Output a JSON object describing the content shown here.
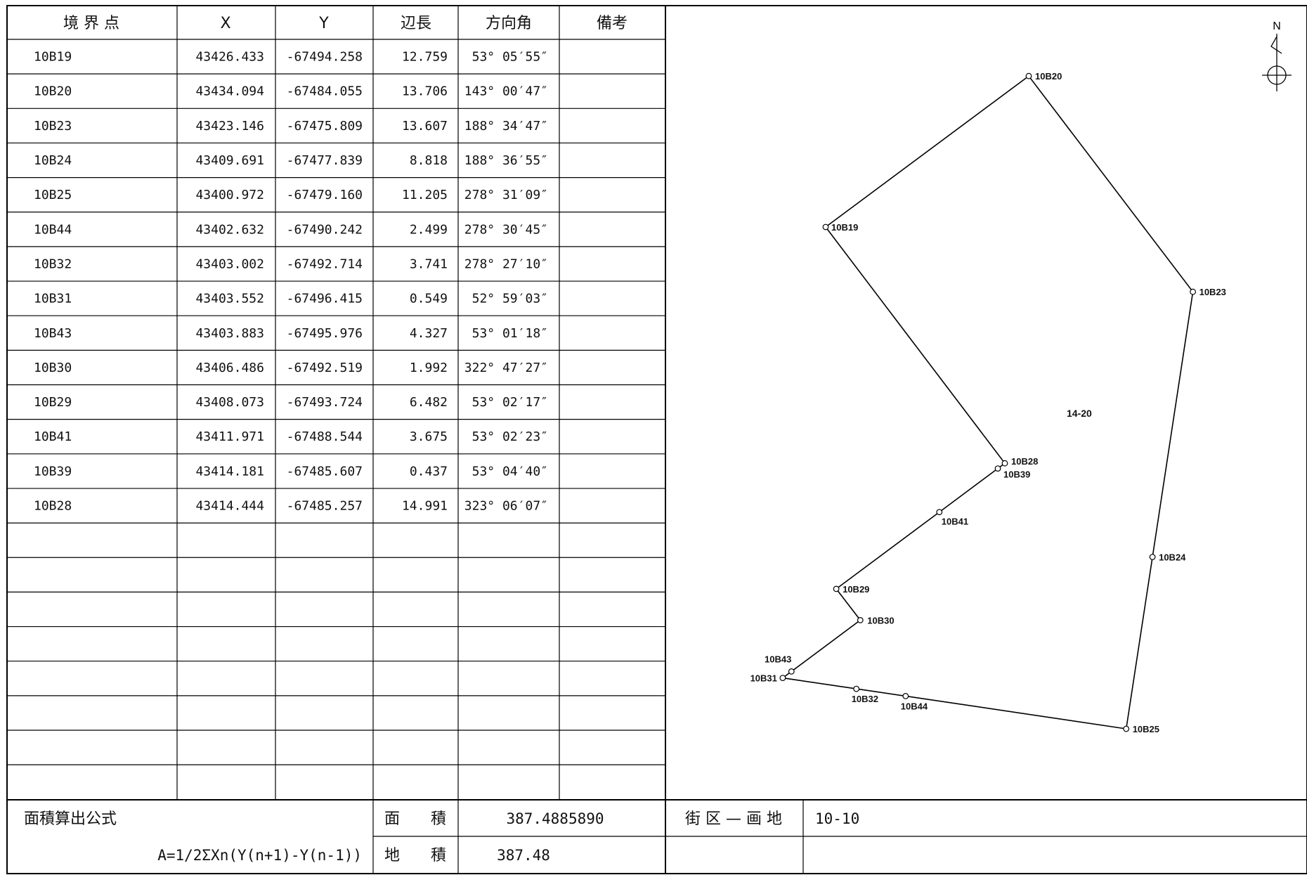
{
  "table": {
    "headers": {
      "point": "境 界 点",
      "x": "X",
      "y": "Y",
      "length": "辺長",
      "bearing": "方向角",
      "remarks": "備考"
    },
    "rows": [
      {
        "point": "10B19",
        "x": "43426.433",
        "y": "-67494.258",
        "length": "12.759",
        "bearing": "53° 05′55″",
        "remarks": ""
      },
      {
        "point": "10B20",
        "x": "43434.094",
        "y": "-67484.055",
        "length": "13.706",
        "bearing": "143° 00′47″",
        "remarks": ""
      },
      {
        "point": "10B23",
        "x": "43423.146",
        "y": "-67475.809",
        "length": "13.607",
        "bearing": "188° 34′47″",
        "remarks": ""
      },
      {
        "point": "10B24",
        "x": "43409.691",
        "y": "-67477.839",
        "length": "8.818",
        "bearing": "188° 36′55″",
        "remarks": ""
      },
      {
        "point": "10B25",
        "x": "43400.972",
        "y": "-67479.160",
        "length": "11.205",
        "bearing": "278° 31′09″",
        "remarks": ""
      },
      {
        "point": "10B44",
        "x": "43402.632",
        "y": "-67490.242",
        "length": "2.499",
        "bearing": "278° 30′45″",
        "remarks": ""
      },
      {
        "point": "10B32",
        "x": "43403.002",
        "y": "-67492.714",
        "length": "3.741",
        "bearing": "278° 27′10″",
        "remarks": ""
      },
      {
        "point": "10B31",
        "x": "43403.552",
        "y": "-67496.415",
        "length": "0.549",
        "bearing": "52° 59′03″",
        "remarks": ""
      },
      {
        "point": "10B43",
        "x": "43403.883",
        "y": "-67495.976",
        "length": "4.327",
        "bearing": "53° 01′18″",
        "remarks": ""
      },
      {
        "point": "10B30",
        "x": "43406.486",
        "y": "-67492.519",
        "length": "1.992",
        "bearing": "322° 47′27″",
        "remarks": ""
      },
      {
        "point": "10B29",
        "x": "43408.073",
        "y": "-67493.724",
        "length": "6.482",
        "bearing": "53° 02′17″",
        "remarks": ""
      },
      {
        "point": "10B41",
        "x": "43411.971",
        "y": "-67488.544",
        "length": "3.675",
        "bearing": "53° 02′23″",
        "remarks": ""
      },
      {
        "point": "10B39",
        "x": "43414.181",
        "y": "-67485.607",
        "length": "0.437",
        "bearing": "53° 04′40″",
        "remarks": ""
      },
      {
        "point": "10B28",
        "x": "43414.444",
        "y": "-67485.257",
        "length": "14.991",
        "bearing": "323° 06′07″",
        "remarks": ""
      }
    ],
    "empty_row_count": 8
  },
  "footer": {
    "formula_title": "面積算出公式",
    "formula": "A=1/2ΣXn(Y(n+1)-Y(n-1))",
    "area_label": "面　　積",
    "area_value": "387.4885890",
    "land_area_label": "地　　積",
    "land_area_value": "387.48",
    "block_label": "街 区 — 画 地",
    "block_value": "10-10"
  },
  "plot": {
    "north_label": "N",
    "parcel_label": "14-20",
    "points": [
      {
        "name": "10B20",
        "x": 43434.094,
        "y": -67484.055
      },
      {
        "name": "10B19",
        "x": 43426.433,
        "y": -67494.258
      },
      {
        "name": "10B23",
        "x": 43423.146,
        "y": -67475.809
      },
      {
        "name": "10B28",
        "x": 43414.444,
        "y": -67485.257
      },
      {
        "name": "10B39",
        "x": 43414.181,
        "y": -67485.607
      },
      {
        "name": "10B41",
        "x": 43411.971,
        "y": -67488.544
      },
      {
        "name": "10B24",
        "x": 43409.691,
        "y": -67477.839
      },
      {
        "name": "10B29",
        "x": 43408.073,
        "y": -67493.724
      },
      {
        "name": "10B30",
        "x": 43406.486,
        "y": -67492.519
      },
      {
        "name": "10B43",
        "x": 43403.883,
        "y": -67495.976
      },
      {
        "name": "10B31",
        "x": 43403.552,
        "y": -67496.415
      },
      {
        "name": "10B32",
        "x": 43403.002,
        "y": -67492.714
      },
      {
        "name": "10B44",
        "x": 43402.632,
        "y": -67490.242
      },
      {
        "name": "10B25",
        "x": 43400.972,
        "y": -67479.16
      }
    ],
    "boundary_order": [
      "10B19",
      "10B20",
      "10B23",
      "10B24",
      "10B25",
      "10B44",
      "10B32",
      "10B31",
      "10B43",
      "10B30",
      "10B29",
      "10B41",
      "10B39",
      "10B28"
    ]
  }
}
